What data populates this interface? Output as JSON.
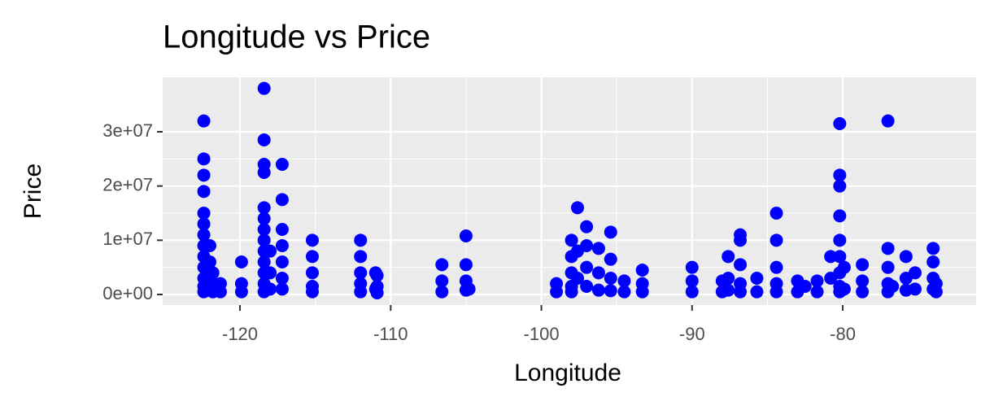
{
  "chart_data": {
    "type": "scatter",
    "title": "Longitude vs Price",
    "x_label": "Longitude",
    "y_label": "Price",
    "color": "#0000ff",
    "grid": true,
    "xlim": [
      -125.13,
      -71.15
    ],
    "xticks": [
      -120,
      -110,
      -100,
      -90,
      -80
    ],
    "ylim": [
      -1950000,
      40050000
    ],
    "yticks": [
      {
        "value": 0,
        "label": "0e+00"
      },
      {
        "value": 10000000,
        "label": "1e+07"
      },
      {
        "value": 20000000,
        "label": "2e+07"
      },
      {
        "value": 30000000,
        "label": "3e+07"
      }
    ],
    "x": [
      -122.4,
      -122.4,
      -122.4,
      -122.4,
      -122.4,
      -122.4,
      -122.4,
      -122.4,
      -122.4,
      -122.4,
      -122.4,
      -122.4,
      -122.4,
      -122.0,
      -122.0,
      -122.0,
      -122.0,
      -121.8,
      -121.8,
      -121.8,
      -121.3,
      -121.3,
      -119.9,
      -119.9,
      -119.9,
      -118.4,
      -118.4,
      -118.4,
      -118.4,
      -118.4,
      -118.4,
      -118.4,
      -118.4,
      -118.4,
      -118.4,
      -118.4,
      -118.4,
      -118.4,
      -118.0,
      -118.0,
      -118.0,
      -117.2,
      -117.2,
      -117.2,
      -117.2,
      -117.2,
      -117.2,
      -117.2,
      -115.2,
      -115.2,
      -115.2,
      -115.2,
      -115.2,
      -112.0,
      -112.0,
      -112.0,
      -112.0,
      -112.0,
      -111.0,
      -111.0,
      -110.9,
      -110.9,
      -110.9,
      -106.6,
      -106.6,
      -106.6,
      -105.0,
      -105.0,
      -105.0,
      -105.0,
      -104.8,
      -99.0,
      -99.0,
      -98.0,
      -98.0,
      -98.0,
      -98.0,
      -98.0,
      -97.6,
      -97.6,
      -97.6,
      -97.0,
      -97.0,
      -97.0,
      -97.0,
      -96.2,
      -96.2,
      -96.2,
      -95.4,
      -95.4,
      -95.4,
      -95.4,
      -94.5,
      -94.5,
      -93.3,
      -93.3,
      -93.3,
      -90.0,
      -90.0,
      -90.0,
      -88.0,
      -88.0,
      -87.6,
      -87.6,
      -87.6,
      -86.8,
      -86.8,
      -86.8,
      -86.8,
      -86.8,
      -85.7,
      -85.7,
      -84.4,
      -84.4,
      -84.4,
      -84.4,
      -84.4,
      -83.0,
      -83.0,
      -82.5,
      -81.7,
      -81.7,
      -80.8,
      -80.8,
      -80.2,
      -80.2,
      -80.2,
      -80.2,
      -80.2,
      -80.2,
      -80.2,
      -80.2,
      -80.2,
      -79.9,
      -79.9,
      -78.7,
      -78.7,
      -78.7,
      -77.0,
      -77.0,
      -77.0,
      -77.0,
      -77.0,
      -76.7,
      -75.8,
      -75.8,
      -75.8,
      -75.2,
      -75.2,
      -74.0,
      -74.0,
      -74.0,
      -74.0,
      -73.8,
      -73.8
    ],
    "values": [
      32000000,
      25000000,
      22000000,
      19000000,
      15000000,
      13000000,
      11000000,
      9000000,
      7000000,
      5000000,
      3000000,
      1500000,
      500000,
      9000000,
      6000000,
      3000000,
      1000000,
      4000000,
      2000000,
      500000,
      2000000,
      500000,
      6000000,
      2000000,
      500000,
      38000000,
      28500000,
      24000000,
      22500000,
      16000000,
      14000000,
      12000000,
      10000000,
      8000000,
      6000000,
      4000000,
      2000000,
      500000,
      8000000,
      4000000,
      1000000,
      24000000,
      17500000,
      12000000,
      9000000,
      6000000,
      3000000,
      1000000,
      10000000,
      7000000,
      4000000,
      1500000,
      500000,
      10000000,
      7000000,
      4000000,
      2000000,
      500000,
      4000000,
      1000000,
      3500000,
      1500000,
      300000,
      5500000,
      2500000,
      500000,
      10800000,
      5500000,
      2500000,
      800000,
      1000000,
      2000000,
      500000,
      10000000,
      7000000,
      4000000,
      1500000,
      500000,
      16000000,
      8000000,
      3000000,
      12500000,
      9000000,
      5000000,
      1500000,
      8500000,
      4000000,
      800000,
      11500000,
      6500000,
      3000000,
      700000,
      2500000,
      500000,
      4500000,
      2000000,
      500000,
      5000000,
      2500000,
      500000,
      2500000,
      500000,
      7000000,
      3000000,
      800000,
      11000000,
      10000000,
      5500000,
      2000000,
      500000,
      3000000,
      500000,
      15000000,
      10000000,
      5000000,
      2000000,
      500000,
      2500000,
      500000,
      1500000,
      2500000,
      500000,
      7000000,
      3000000,
      31500000,
      22000000,
      20000000,
      14500000,
      10000000,
      7000000,
      4000000,
      1500000,
      500000,
      5000000,
      1000000,
      5500000,
      2500000,
      500000,
      32000000,
      8500000,
      5000000,
      2000000,
      500000,
      1500000,
      7000000,
      3000000,
      800000,
      4000000,
      1000000,
      8500000,
      6000000,
      3000000,
      1000000,
      2000000,
      500000
    ]
  }
}
